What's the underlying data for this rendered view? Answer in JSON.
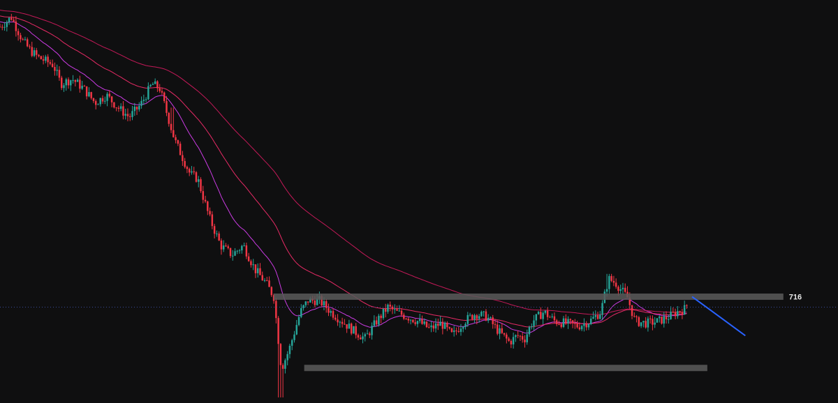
{
  "chart_data": {
    "type": "candlestick",
    "grid": false,
    "legend": "none",
    "y_axis_labels": [
      "716"
    ],
    "colors": {
      "background": "#0f0f10",
      "up": "#26a69a",
      "down": "#f23645",
      "ema_fast": "#e040fb",
      "ema_mid": "#ff2d6f",
      "ema_slow": "#d81b60",
      "zone": "#5a5a5a",
      "trend_arrow": "#2962ff",
      "price_line": "#3a4a9a"
    },
    "price_path": [
      [
        0,
        1000
      ],
      [
        3,
        1010
      ],
      [
        6,
        985
      ],
      [
        8,
        975
      ],
      [
        10,
        968
      ],
      [
        14,
        960
      ],
      [
        16,
        940
      ],
      [
        19,
        945
      ],
      [
        22,
        935
      ],
      [
        25,
        920
      ],
      [
        28,
        928
      ],
      [
        31,
        915
      ],
      [
        34,
        905
      ],
      [
        37,
        918
      ],
      [
        40,
        940
      ],
      [
        42,
        935
      ],
      [
        46,
        880
      ],
      [
        50,
        845
      ],
      [
        52,
        840
      ],
      [
        55,
        800
      ],
      [
        58,
        770
      ],
      [
        61,
        760
      ],
      [
        64,
        770
      ],
      [
        67,
        745
      ],
      [
        70,
        730
      ],
      [
        72,
        716
      ],
      [
        74,
        640
      ],
      [
        76,
        660
      ],
      [
        79,
        700
      ],
      [
        81,
        712
      ],
      [
        84,
        712
      ],
      [
        87,
        700
      ],
      [
        90,
        690
      ],
      [
        93,
        680
      ],
      [
        96,
        672
      ],
      [
        99,
        690
      ],
      [
        102,
        705
      ],
      [
        104,
        700
      ],
      [
        107,
        695
      ],
      [
        110,
        690
      ],
      [
        113,
        682
      ],
      [
        116,
        688
      ],
      [
        119,
        675
      ],
      [
        122,
        690
      ],
      [
        125,
        698
      ],
      [
        128,
        695
      ],
      [
        131,
        680
      ],
      [
        134,
        668
      ],
      [
        136,
        675
      ],
      [
        138,
        672
      ],
      [
        140,
        690
      ],
      [
        143,
        700
      ],
      [
        146,
        690
      ],
      [
        149,
        688
      ],
      [
        152,
        685
      ],
      [
        155,
        690
      ],
      [
        158,
        700
      ],
      [
        160,
        735
      ],
      [
        162,
        730
      ],
      [
        165,
        715
      ],
      [
        167,
        690
      ],
      [
        170,
        688
      ],
      [
        173,
        690
      ],
      [
        176,
        695
      ],
      [
        178,
        700
      ],
      [
        180,
        703
      ],
      [
        181,
        710
      ]
    ],
    "zones": [
      {
        "label": "716",
        "value": 716,
        "x_start": 72,
        "x_end": 206
      },
      {
        "label": "",
        "value": 641,
        "x_start": 80,
        "x_end": 186
      }
    ],
    "current_price": 705,
    "trend_arrow": {
      "from": [
        182,
        716
      ],
      "to": [
        196,
        675
      ]
    },
    "ema_periods": [
      20,
      50,
      100
    ],
    "x_range": [
      0,
      220
    ],
    "y_range": [
      610,
      1015
    ]
  }
}
